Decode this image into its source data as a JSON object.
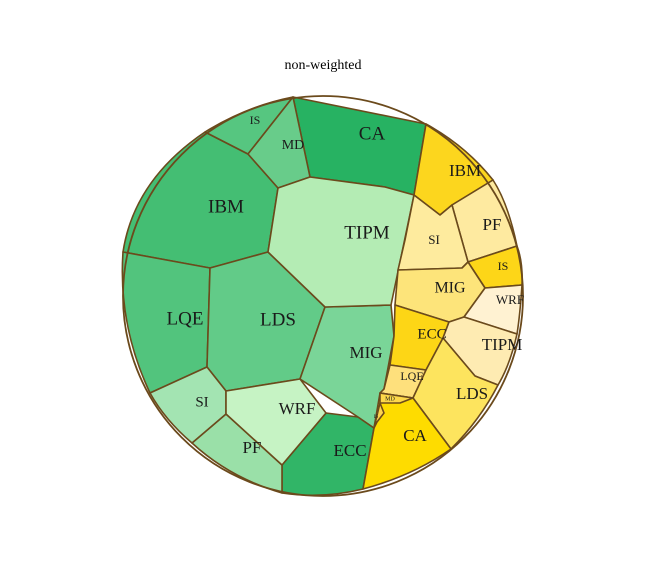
{
  "chart_data": {
    "type": "voronoi-treemap",
    "title": "non-weighted",
    "groups": [
      {
        "palette": "green",
        "cells": [
          {
            "label": "CA",
            "color": "#27b262"
          },
          {
            "label": "IBM",
            "color": "#44be73"
          },
          {
            "label": "LQE",
            "color": "#52c47d"
          },
          {
            "label": "IS",
            "color": "#56c680"
          },
          {
            "label": "LDS",
            "color": "#62cb88"
          },
          {
            "label": "MD",
            "color": "#68cc8a"
          },
          {
            "label": "ECC",
            "color": "#31b567"
          },
          {
            "label": "MIG",
            "color": "#7ad598"
          },
          {
            "label": "PF",
            "color": "#9ae0a8"
          },
          {
            "label": "SI",
            "color": "#a3e4b2"
          },
          {
            "label": "TIPM",
            "color": "#b4ecb4"
          },
          {
            "label": "WRF",
            "color": "#c6f3c4"
          }
        ]
      },
      {
        "palette": "yellow",
        "cells": [
          {
            "label": "IBM",
            "color": "#fcd61e"
          },
          {
            "label": "PF",
            "color": "#feeaa0"
          },
          {
            "label": "SI",
            "color": "#feeb9e"
          },
          {
            "label": "IS",
            "color": "#fdd618"
          },
          {
            "label": "MIG",
            "color": "#fde47a"
          },
          {
            "label": "WRF",
            "color": "#fff2d2"
          },
          {
            "label": "ECC",
            "color": "#fdd616"
          },
          {
            "label": "TIPM",
            "color": "#feebb2"
          },
          {
            "label": "LQE",
            "color": "#fee07c"
          },
          {
            "label": "LDS",
            "color": "#fde45e"
          },
          {
            "label": "CA",
            "color": "#fedc00"
          },
          {
            "label": "MD",
            "color": "#fdd84a"
          },
          {
            "label": "IS",
            "color": "#fdd44e"
          }
        ]
      }
    ]
  }
}
